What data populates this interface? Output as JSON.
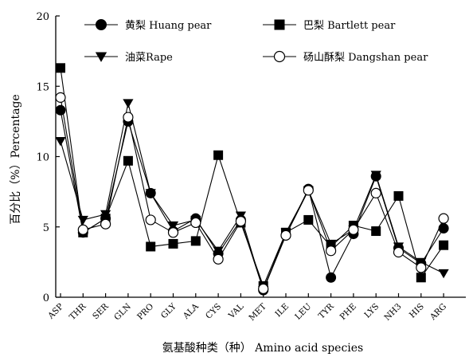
{
  "chart_data": {
    "type": "line",
    "title": "",
    "xlabel": "氨基酸种类（种） Amino acid species",
    "ylabel": "百分比（%）Percentage",
    "ylim": [
      0,
      20
    ],
    "yticks": [
      "0",
      "5",
      "10",
      "15",
      "20"
    ],
    "categories": [
      "ASP",
      "THR",
      "SER",
      "GLN",
      "PRO",
      "GLY",
      "ALA",
      "CYS",
      "VAL",
      "MET",
      "ILE",
      "LEU",
      "TYR",
      "PHE",
      "LYS",
      "NH3",
      "HIS",
      "ARG"
    ],
    "grid": false,
    "legend_position": "top",
    "series": [
      {
        "name": "黄梨 Huang pear",
        "marker": "filled-circle",
        "values": [
          13.3,
          4.6,
          5.6,
          12.5,
          7.4,
          4.7,
          5.6,
          3.1,
          5.5,
          0.5,
          4.4,
          7.7,
          1.4,
          4.5,
          8.6,
          3.5,
          2.4,
          4.9
        ]
      },
      {
        "name": "巴梨 Bartlett pear",
        "marker": "filled-square",
        "values": [
          16.3,
          4.6,
          5.6,
          9.7,
          3.6,
          3.8,
          4.0,
          10.1,
          5.3,
          0.8,
          4.6,
          5.5,
          3.6,
          5.1,
          4.7,
          7.2,
          1.4,
          3.7
        ]
      },
      {
        "name": "油菜Rape",
        "marker": "filled-triangle-down",
        "values": [
          11.1,
          5.5,
          5.9,
          13.8,
          7.4,
          5.1,
          5.5,
          3.3,
          5.8,
          0.5,
          4.6,
          7.6,
          3.8,
          4.8,
          8.7,
          3.6,
          2.5,
          1.7
        ]
      },
      {
        "name": "砀山酥梨 Dangshan pear",
        "marker": "open-circle",
        "values": [
          14.2,
          4.8,
          5.2,
          12.8,
          5.5,
          4.6,
          5.3,
          2.7,
          5.4,
          0.6,
          4.4,
          7.6,
          3.3,
          4.8,
          7.4,
          3.2,
          2.1,
          5.6
        ]
      }
    ]
  }
}
